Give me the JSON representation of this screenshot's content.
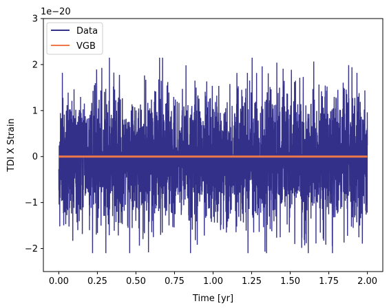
{
  "chart_data": {
    "type": "line",
    "title": "",
    "xlabel": "Time [yr]",
    "ylabel": "TDI X Strain",
    "y_scale_label": "1e−20",
    "xlim": [
      -0.1,
      2.1
    ],
    "ylim": [
      -2.5,
      3
    ],
    "xticks": [
      0.0,
      0.25,
      0.5,
      0.75,
      1.0,
      1.25,
      1.5,
      1.75,
      2.0
    ],
    "xtick_labels": [
      "0.00",
      "0.25",
      "0.50",
      "0.75",
      "1.00",
      "1.25",
      "1.50",
      "1.75",
      "2.00"
    ],
    "yticks": [
      -2,
      -1,
      0,
      1,
      2,
      3
    ],
    "ytick_labels": [
      "−2",
      "−1",
      "0",
      "1",
      "2",
      "3"
    ],
    "grid": false,
    "legend_position": "upper-left",
    "series": [
      {
        "name": "Data",
        "color": "#33308a",
        "x_range": [
          0.0,
          2.0
        ],
        "typical_envelope": [
          -1.6,
          1.5
        ],
        "max_value": 2.15,
        "min_value": -2.1
      },
      {
        "name": "VGB",
        "color": "#f07848",
        "x_range": [
          0.0,
          2.0
        ],
        "values_approx": 0.0
      }
    ]
  }
}
